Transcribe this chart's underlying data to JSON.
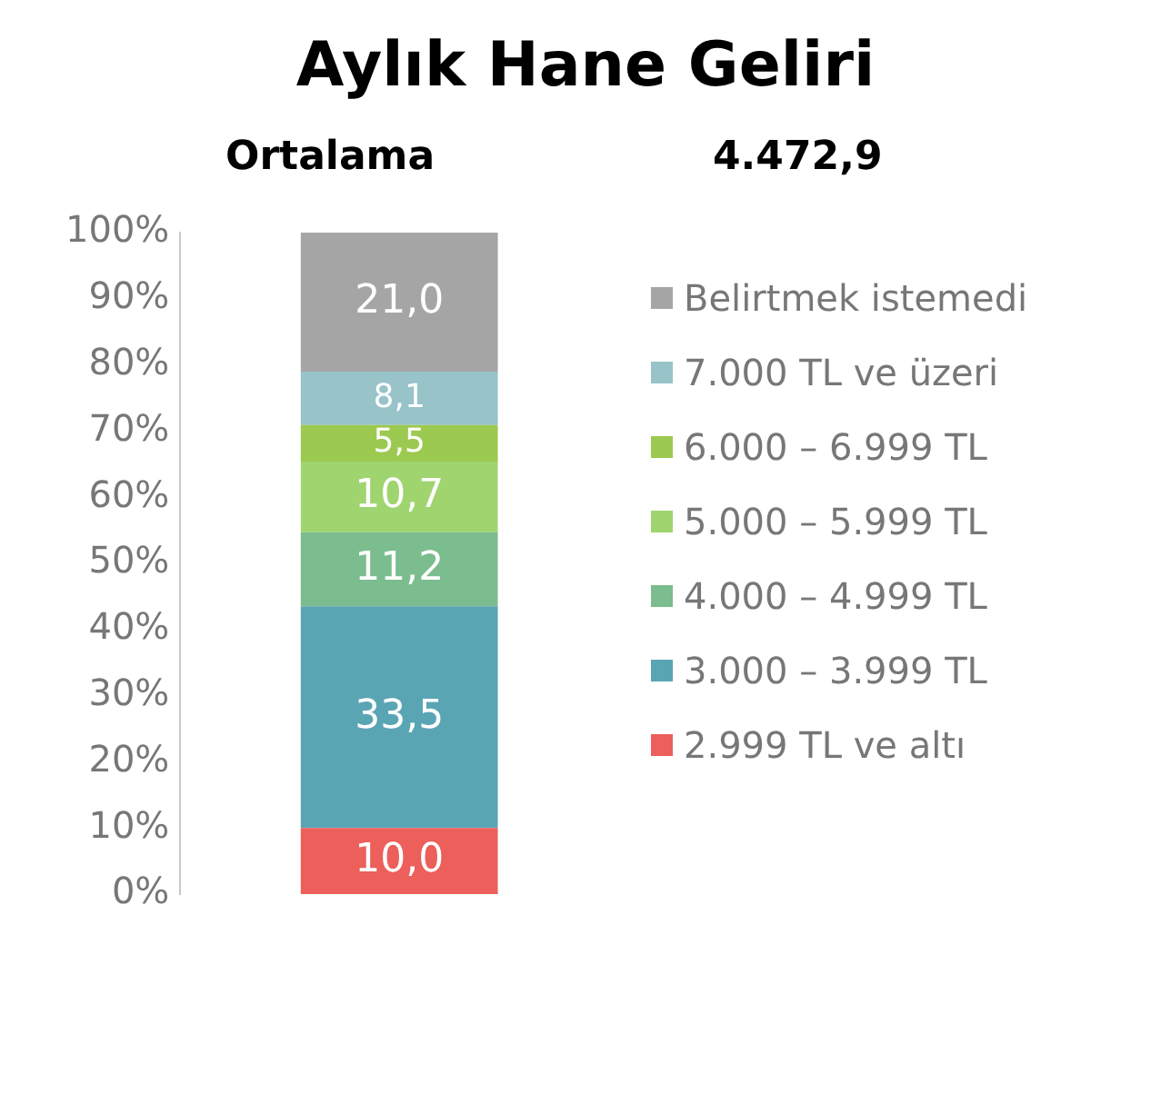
{
  "chart_data": {
    "type": "bar",
    "title": "Aylık Hane Geliri",
    "subtitle": "Ortalama",
    "annotations": [
      "4.472,9"
    ],
    "categories": [
      null
    ],
    "stacked": true,
    "grid": false,
    "legend": "right",
    "tick_labels": "y",
    "ylim": [
      0,
      100
    ],
    "yticks": [
      {
        "value": 0,
        "label": "0%"
      },
      {
        "value": 10,
        "label": "10%"
      },
      {
        "value": 20,
        "label": "20%"
      },
      {
        "value": 30,
        "label": "30%"
      },
      {
        "value": 40,
        "label": "40%"
      },
      {
        "value": 50,
        "label": "50%"
      },
      {
        "value": 60,
        "label": "60%"
      },
      {
        "value": 70,
        "label": "70%"
      },
      {
        "value": 80,
        "label": "80%"
      },
      {
        "value": 90,
        "label": "90%"
      },
      {
        "value": 100,
        "label": "100%"
      }
    ],
    "series": [
      {
        "name": "2.999 TL ve altı",
        "color": "#ec5f5a",
        "values": [
          10.0
        ],
        "value_labels": [
          "10,0"
        ]
      },
      {
        "name": "3.000 – 3.999 TL",
        "color": "#5aa5b4",
        "values": [
          33.5
        ],
        "value_labels": [
          "33,5"
        ]
      },
      {
        "name": "4.000 – 4.999 TL",
        "color": "#7bbd8e",
        "values": [
          11.2
        ],
        "value_labels": [
          "11,2"
        ]
      },
      {
        "name": "5.000 – 5.999 TL",
        "color": "#9fd46f",
        "values": [
          10.7
        ],
        "value_labels": [
          "10,7"
        ]
      },
      {
        "name": "6.000 – 6.999 TL",
        "color": "#9cc94f",
        "values": [
          5.5
        ],
        "value_labels": [
          "5,5"
        ]
      },
      {
        "name": "7.000 TL ve üzeri",
        "color": "#97c3c9",
        "values": [
          8.1
        ],
        "value_labels": [
          "8,1"
        ]
      },
      {
        "name": "Belirtmek istemedi",
        "color": "#a5a5a5",
        "values": [
          21.0
        ],
        "value_labels": [
          "21,0"
        ]
      }
    ]
  }
}
